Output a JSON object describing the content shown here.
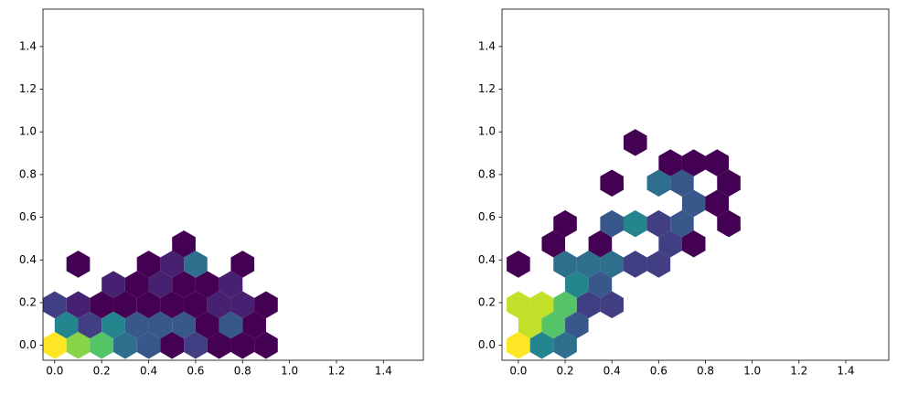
{
  "chart_data": [
    {
      "type": "hexbin",
      "cmap": "viridis",
      "x": [
        0,
        0.1,
        0.2,
        0.3,
        0.4,
        0.5,
        0.6,
        0.7,
        0.8,
        0.9,
        0.05,
        0.15,
        0.25,
        0.35,
        0.45,
        0.55,
        0.65,
        0.75,
        0.85,
        0,
        0.1,
        0.2,
        0.3,
        0.4,
        0.5,
        0.6,
        0.7,
        0.8,
        0.9,
        0.25,
        0.35,
        0.45,
        0.55,
        0.65,
        0.75,
        0.1,
        0.4,
        0.5,
        0.6,
        0.8,
        0.55
      ],
      "y": [
        0,
        0,
        0,
        0,
        0,
        0,
        0,
        0,
        0,
        0,
        0.095,
        0.095,
        0.095,
        0.095,
        0.095,
        0.095,
        0.095,
        0.095,
        0.095,
        0.19,
        0.19,
        0.19,
        0.19,
        0.19,
        0.19,
        0.19,
        0.19,
        0.19,
        0.19,
        0.285,
        0.285,
        0.285,
        0.285,
        0.285,
        0.285,
        0.38,
        0.38,
        0.38,
        0.38,
        0.38,
        0.475
      ],
      "counts": [
        12,
        10,
        9,
        5,
        4,
        1,
        3,
        1,
        1,
        1,
        6,
        3,
        6,
        4,
        4,
        4,
        1,
        4,
        1,
        3,
        2,
        1,
        1,
        1,
        1,
        1,
        2,
        2,
        1,
        2,
        1,
        2,
        1,
        1,
        2,
        1,
        1,
        2,
        5,
        1,
        1
      ],
      "xlim": [
        -0.05,
        1.57
      ],
      "ylim": [
        -0.07,
        1.575
      ],
      "xticks": [
        {
          "value": 0,
          "label": "0.0"
        },
        {
          "value": 0.2,
          "label": "0.2"
        },
        {
          "value": 0.4,
          "label": "0.4"
        },
        {
          "value": 0.6,
          "label": "0.6"
        },
        {
          "value": 0.8,
          "label": "0.8"
        },
        {
          "value": 1,
          "label": "1.0"
        },
        {
          "value": 1.2,
          "label": "1.2"
        },
        {
          "value": 1.4,
          "label": "1.4"
        }
      ],
      "yticks": [
        {
          "value": 0,
          "label": "0.0"
        },
        {
          "value": 0.2,
          "label": "0.2"
        },
        {
          "value": 0.4,
          "label": "0.4"
        },
        {
          "value": 0.6,
          "label": "0.6"
        },
        {
          "value": 0.8,
          "label": "0.8"
        },
        {
          "value": 1,
          "label": "1.0"
        },
        {
          "value": 1.2,
          "label": "1.2"
        },
        {
          "value": 1.4,
          "label": "1.4"
        }
      ]
    },
    {
      "type": "hexbin",
      "cmap": "viridis",
      "x": [
        0,
        0.1,
        0.2,
        0.05,
        0.15,
        0.25,
        0,
        0.1,
        0.2,
        0.3,
        0.4,
        0.25,
        0.35,
        0,
        0.2,
        0.3,
        0.4,
        0.5,
        0.6,
        0.15,
        0.35,
        0.65,
        0.75,
        0.2,
        0.4,
        0.5,
        0.6,
        0.7,
        0.9,
        0.75,
        0.85,
        0.4,
        0.6,
        0.7,
        0.9,
        0.65,
        0.75,
        0.85,
        0.5
      ],
      "y": [
        0,
        0,
        0,
        0.095,
        0.095,
        0.095,
        0.19,
        0.19,
        0.19,
        0.19,
        0.19,
        0.285,
        0.285,
        0.38,
        0.38,
        0.38,
        0.38,
        0.38,
        0.38,
        0.475,
        0.475,
        0.475,
        0.475,
        0.57,
        0.57,
        0.57,
        0.57,
        0.57,
        0.57,
        0.665,
        0.665,
        0.76,
        0.76,
        0.76,
        0.76,
        0.855,
        0.855,
        0.855,
        0.95
      ],
      "counts": [
        12,
        6,
        5,
        11,
        9,
        4,
        11,
        11,
        9,
        3,
        3,
        6,
        4,
        1,
        5,
        5,
        5,
        3,
        3,
        1,
        1,
        3,
        1,
        1,
        4,
        6,
        3,
        4,
        1,
        4,
        1,
        1,
        5,
        4,
        1,
        1,
        1,
        1,
        1
      ],
      "xlim": [
        -0.07,
        1.584
      ],
      "ylim": [
        -0.07,
        1.575
      ],
      "xticks": [
        {
          "value": 0,
          "label": "0.0"
        },
        {
          "value": 0.2,
          "label": "0.2"
        },
        {
          "value": 0.4,
          "label": "0.4"
        },
        {
          "value": 0.6,
          "label": "0.6"
        },
        {
          "value": 0.8,
          "label": "0.8"
        },
        {
          "value": 1,
          "label": "1.0"
        },
        {
          "value": 1.2,
          "label": "1.2"
        },
        {
          "value": 1.4,
          "label": "1.4"
        }
      ],
      "yticks": [
        {
          "value": 0,
          "label": "0.0"
        },
        {
          "value": 0.2,
          "label": "0.2"
        },
        {
          "value": 0.4,
          "label": "0.4"
        },
        {
          "value": 0.6,
          "label": "0.6"
        },
        {
          "value": 0.8,
          "label": "0.8"
        },
        {
          "value": 1,
          "label": "1.0"
        },
        {
          "value": 1.2,
          "label": "1.2"
        },
        {
          "value": 1.4,
          "label": "1.4"
        }
      ]
    }
  ]
}
